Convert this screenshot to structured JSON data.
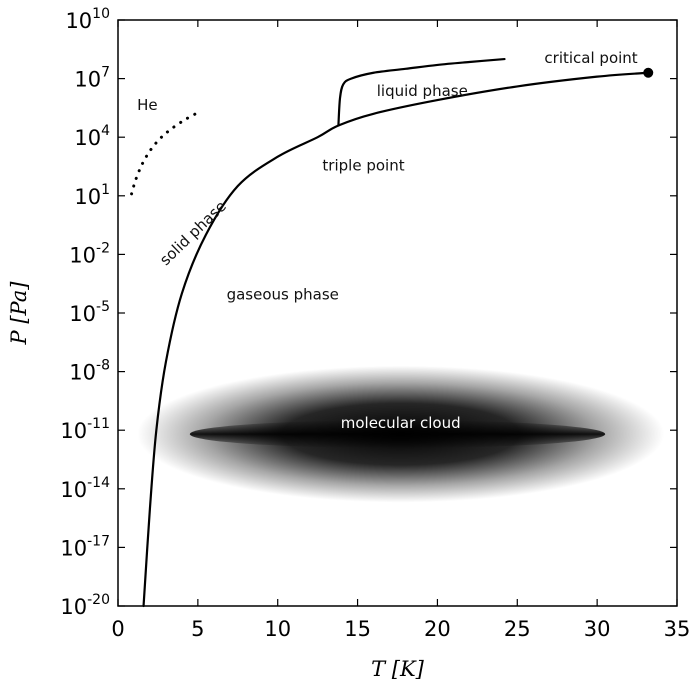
{
  "chart_data": {
    "type": "line",
    "xlabel": "T [K]",
    "ylabel": "P [Pa]",
    "xlim": [
      0,
      35
    ],
    "ylim_log10": [
      -20,
      10
    ],
    "y_scale": "log",
    "grid": false,
    "x_ticks": [
      0,
      5,
      10,
      15,
      20,
      25,
      30,
      35
    ],
    "y_ticks": [
      {
        "base": "10",
        "exp": "10",
        "log10": 10
      },
      {
        "base": "10",
        "exp": "7",
        "log10": 7
      },
      {
        "base": "10",
        "exp": "4",
        "log10": 4
      },
      {
        "base": "10",
        "exp": "1",
        "log10": 1
      },
      {
        "base": "10",
        "exp": "-2",
        "log10": -2
      },
      {
        "base": "10",
        "exp": "-5",
        "log10": -5
      },
      {
        "base": "10",
        "exp": "-8",
        "log10": -8
      },
      {
        "base": "10",
        "exp": "-11",
        "log10": -11
      },
      {
        "base": "10",
        "exp": "-14",
        "log10": -14
      },
      {
        "base": "10",
        "exp": "-17",
        "log10": -17
      },
      {
        "base": "10",
        "exp": "-20",
        "log10": -20
      }
    ],
    "series": [
      {
        "style": "solid",
        "points_T_log10P": [
          [
            1.6,
            -20
          ],
          [
            2.0,
            -15
          ],
          [
            2.4,
            -11
          ],
          [
            3.0,
            -7.5
          ],
          [
            4.0,
            -4
          ],
          [
            5.5,
            -1
          ],
          [
            7.5,
            1.5
          ],
          [
            10.0,
            3.0
          ],
          [
            12.5,
            4.0
          ],
          [
            13.8,
            4.6
          ],
          [
            16,
            5.2
          ],
          [
            20,
            5.9
          ],
          [
            25,
            6.6
          ],
          [
            30,
            7.1
          ],
          [
            33.2,
            7.3
          ]
        ]
      },
      {
        "style": "solid",
        "points_T_log10P": [
          [
            13.8,
            4.6
          ],
          [
            13.9,
            6.0
          ],
          [
            14.1,
            6.7
          ],
          [
            14.6,
            7.0
          ],
          [
            16,
            7.3
          ],
          [
            18,
            7.5
          ],
          [
            20,
            7.7
          ],
          [
            22,
            7.85
          ],
          [
            24.2,
            8.0
          ]
        ]
      },
      {
        "style": "dotted",
        "points_T_log10P": [
          [
            0.85,
            1.1
          ],
          [
            1.1,
            1.8
          ],
          [
            1.5,
            2.6
          ],
          [
            2.0,
            3.3
          ],
          [
            2.6,
            3.9
          ],
          [
            3.3,
            4.4
          ],
          [
            4.2,
            4.9
          ],
          [
            5.1,
            5.3
          ]
        ]
      }
    ],
    "critical_point": {
      "T": 33.2,
      "log10P": 7.3
    },
    "molecular_cloud": {
      "T_range": [
        1.2,
        34.2
      ],
      "T_core": [
        4.5,
        30.5
      ],
      "log10P_center": -11.2,
      "log10P_halfwidth": 3.5
    },
    "annotations": {
      "he": "He",
      "solid_phase": "solid phase",
      "gaseous_phase": "gaseous phase",
      "liquid_phase": "liquid phase",
      "triple_point": "triple point",
      "critical_point": "critical point",
      "molecular_cloud": "molecular cloud"
    },
    "colors": {
      "line": "#000000",
      "background": "#ffffff",
      "cloud_core": "#000000",
      "cloud_label": "#ffffff"
    }
  }
}
